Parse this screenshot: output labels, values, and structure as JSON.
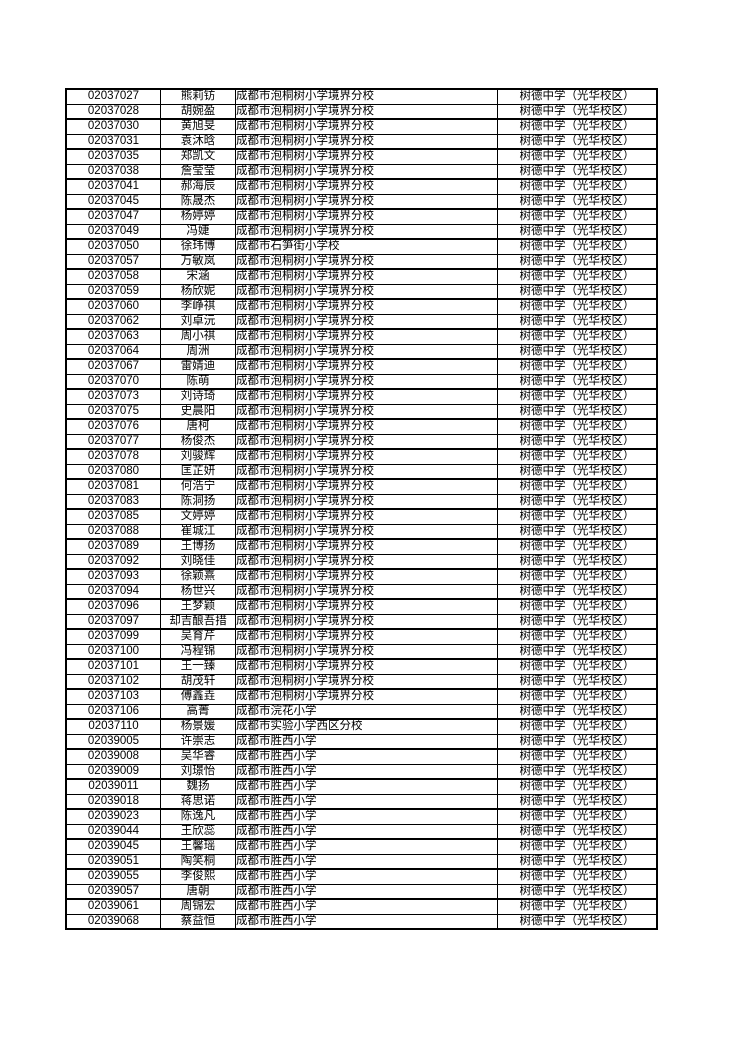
{
  "table": {
    "destination_school": "树德中学（光华校区）",
    "rows": [
      [
        "02037027",
        "熊莉钫",
        "成都市泡桐树小学境界分校",
        "树德中学（光华校区）"
      ],
      [
        "02037028",
        "胡婉盈",
        "成都市泡桐树小学境界分校",
        "树德中学（光华校区）"
      ],
      [
        "02037030",
        "黄旭旻",
        "成都市泡桐树小学境界分校",
        "树德中学（光华校区）"
      ],
      [
        "02037031",
        "袁沐晗",
        "成都市泡桐树小学境界分校",
        "树德中学（光华校区）"
      ],
      [
        "02037035",
        "郑凯文",
        "成都市泡桐树小学境界分校",
        "树德中学（光华校区）"
      ],
      [
        "02037038",
        "詹莹莹",
        "成都市泡桐树小学境界分校",
        "树德中学（光华校区）"
      ],
      [
        "02037041",
        "郝海辰",
        "成都市泡桐树小学境界分校",
        "树德中学（光华校区）"
      ],
      [
        "02037045",
        "陈晟杰",
        "成都市泡桐树小学境界分校",
        "树德中学（光华校区）"
      ],
      [
        "02037047",
        "杨婷婷",
        "成都市泡桐树小学境界分校",
        "树德中学（光华校区）"
      ],
      [
        "02037049",
        "冯婕",
        "成都市泡桐树小学境界分校",
        "树德中学（光华校区）"
      ],
      [
        "02037050",
        "徐玮博",
        "成都市石笋街小学校",
        "树德中学（光华校区）"
      ],
      [
        "02037057",
        "万敏岚",
        "成都市泡桐树小学境界分校",
        "树德中学（光华校区）"
      ],
      [
        "02037058",
        "宋涵",
        "成都市泡桐树小学境界分校",
        "树德中学（光华校区）"
      ],
      [
        "02037059",
        "杨欣妮",
        "成都市泡桐树小学境界分校",
        "树德中学（光华校区）"
      ],
      [
        "02037060",
        "李峥祺",
        "成都市泡桐树小学境界分校",
        "树德中学（光华校区）"
      ],
      [
        "02037062",
        "刘卓沅",
        "成都市泡桐树小学境界分校",
        "树德中学（光华校区）"
      ],
      [
        "02037063",
        "周小祺",
        "成都市泡桐树小学境界分校",
        "树德中学（光华校区）"
      ],
      [
        "02037064",
        "周洲",
        "成都市泡桐树小学境界分校",
        "树德中学（光华校区）"
      ],
      [
        "02037067",
        "雷婧迪",
        "成都市泡桐树小学境界分校",
        "树德中学（光华校区）"
      ],
      [
        "02037070",
        "陈萌",
        "成都市泡桐树小学境界分校",
        "树德中学（光华校区）"
      ],
      [
        "02037073",
        "刘诗琦",
        "成都市泡桐树小学境界分校",
        "树德中学（光华校区）"
      ],
      [
        "02037075",
        "史晨阳",
        "成都市泡桐树小学境界分校",
        "树德中学（光华校区）"
      ],
      [
        "02037076",
        "唐柯",
        "成都市泡桐树小学境界分校",
        "树德中学（光华校区）"
      ],
      [
        "02037077",
        "杨俊杰",
        "成都市泡桐树小学境界分校",
        "树德中学（光华校区）"
      ],
      [
        "02037078",
        "刘骏辉",
        "成都市泡桐树小学境界分校",
        "树德中学（光华校区）"
      ],
      [
        "02037080",
        "匡芷妍",
        "成都市泡桐树小学境界分校",
        "树德中学（光华校区）"
      ],
      [
        "02037081",
        "何浩宁",
        "成都市泡桐树小学境界分校",
        "树德中学（光华校区）"
      ],
      [
        "02037083",
        "陈洞扬",
        "成都市泡桐树小学境界分校",
        "树德中学（光华校区）"
      ],
      [
        "02037085",
        "文婷婷",
        "成都市泡桐树小学境界分校",
        "树德中学（光华校区）"
      ],
      [
        "02037088",
        "崔城江",
        "成都市泡桐树小学境界分校",
        "树德中学（光华校区）"
      ],
      [
        "02037089",
        "王博扬",
        "成都市泡桐树小学境界分校",
        "树德中学（光华校区）"
      ],
      [
        "02037092",
        "刘晓佳",
        "成都市泡桐树小学境界分校",
        "树德中学（光华校区）"
      ],
      [
        "02037093",
        "徐颖熹",
        "成都市泡桐树小学境界分校",
        "树德中学（光华校区）"
      ],
      [
        "02037094",
        "杨世兴",
        "成都市泡桐树小学境界分校",
        "树德中学（光华校区）"
      ],
      [
        "02037096",
        "王梦颖",
        "成都市泡桐树小学境界分校",
        "树德中学（光华校区）"
      ],
      [
        "02037097",
        "却吉酿吾措",
        "成都市泡桐树小学境界分校",
        "树德中学（光华校区）"
      ],
      [
        "02037099",
        "吴育芹",
        "成都市泡桐树小学境界分校",
        "树德中学（光华校区）"
      ],
      [
        "02037100",
        "冯程锦",
        "成都市泡桐树小学境界分校",
        "树德中学（光华校区）"
      ],
      [
        "02037101",
        "王一臻",
        "成都市泡桐树小学境界分校",
        "树德中学（光华校区）"
      ],
      [
        "02037102",
        "胡茂轩",
        "成都市泡桐树小学境界分校",
        "树德中学（光华校区）"
      ],
      [
        "02037103",
        "傅鑫垚",
        "成都市泡桐树小学境界分校",
        "树德中学（光华校区）"
      ],
      [
        "02037106",
        "高菁",
        "成都市浣花小学",
        "树德中学（光华校区）"
      ],
      [
        "02037110",
        "杨景媛",
        "成都市实验小学西区分校",
        "树德中学（光华校区）"
      ],
      [
        "02039005",
        "许崇志",
        "成都市胜西小学",
        "树德中学（光华校区）"
      ],
      [
        "02039008",
        "吴华睿",
        "成都市胜西小学",
        "树德中学（光华校区）"
      ],
      [
        "02039009",
        "刘璟怡",
        "成都市胜西小学",
        "树德中学（光华校区）"
      ],
      [
        "02039011",
        "魏扬",
        "成都市胜西小学",
        "树德中学（光华校区）"
      ],
      [
        "02039018",
        "蒋思诺",
        "成都市胜西小学",
        "树德中学（光华校区）"
      ],
      [
        "02039023",
        "陈逸凡",
        "成都市胜西小学",
        "树德中学（光华校区）"
      ],
      [
        "02039044",
        "王欣蕊",
        "成都市胜西小学",
        "树德中学（光华校区）"
      ],
      [
        "02039045",
        "王馨瑶",
        "成都市胜西小学",
        "树德中学（光华校区）"
      ],
      [
        "02039051",
        "陶笑桐",
        "成都市胜西小学",
        "树德中学（光华校区）"
      ],
      [
        "02039055",
        "李俊熙",
        "成都市胜西小学",
        "树德中学（光华校区）"
      ],
      [
        "02039057",
        "唐朝",
        "成都市胜西小学",
        "树德中学（光华校区）"
      ],
      [
        "02039061",
        "周锦宏",
        "成都市胜西小学",
        "树德中学（光华校区）"
      ],
      [
        "02039068",
        "蔡益恒",
        "成都市胜西小学",
        "树德中学（光华校区）"
      ]
    ]
  }
}
